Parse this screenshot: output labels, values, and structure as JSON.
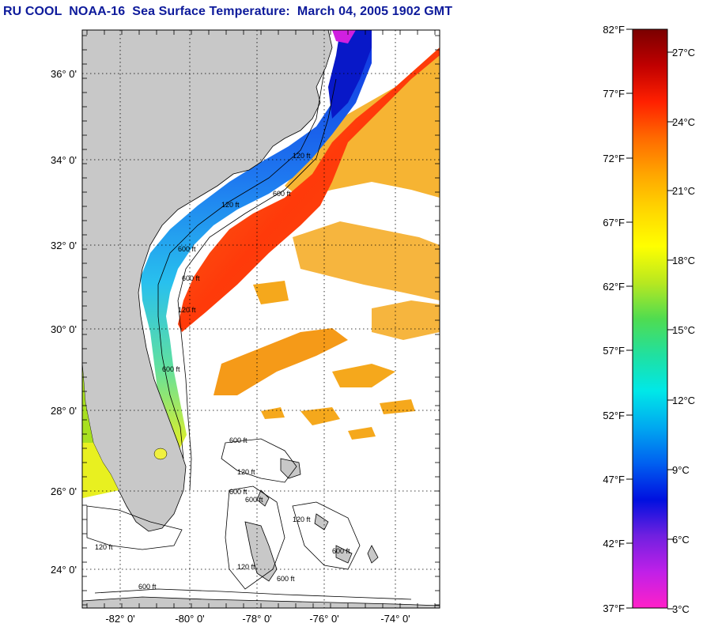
{
  "title": "RU COOL  NOAA-16  Sea Surface Temperature:  March 04, 2005 1902 GMT",
  "map": {
    "lat_labels": [
      "36° 0'",
      "34° 0'",
      "32° 0'",
      "30° 0'",
      "28° 0'",
      "26° 0'",
      "24° 0'"
    ],
    "lon_labels": [
      "-82° 0'",
      "-80° 0'",
      "-78° 0'",
      "-76° 0'",
      "-74° 0'"
    ],
    "contour_labels": [
      "120 ft",
      "600 ft",
      "120 ft",
      "600 ft",
      "600 ft",
      "120 ft",
      "600 ft",
      "600 ft",
      "120 ft",
      "600 ft",
      "600 ft",
      "120 ft",
      "600 ft",
      "600 ft",
      "120 ft",
      "120 ft",
      "600 ft"
    ],
    "colors": {
      "land": "#c8c8c8",
      "gulf_stream": "#f0400a",
      "slope_water": "#f5a31c",
      "shelf_cold": "#1460f0",
      "shelf_mid": "#30c8e8",
      "cloud": "#ffffff",
      "grid": "#000000"
    }
  },
  "colorbar": {
    "f_labels": [
      "82°F",
      "77°F",
      "72°F",
      "67°F",
      "62°F",
      "57°F",
      "52°F",
      "47°F",
      "42°F",
      "37°F"
    ],
    "c_labels": [
      "27°C",
      "24°C",
      "21°C",
      "18°C",
      "15°C",
      "12°C",
      "9°C",
      "6°C",
      "3°C"
    ],
    "gradient": [
      "#7a0000",
      "#c00000",
      "#ff2000",
      "#ff6a00",
      "#ffa500",
      "#ffd700",
      "#ffff00",
      "#b8e820",
      "#50dc50",
      "#20e0a0",
      "#00e8e8",
      "#00a8f0",
      "#0060f0",
      "#0010e0",
      "#7020e0",
      "#c020e8",
      "#ff20c8"
    ]
  }
}
